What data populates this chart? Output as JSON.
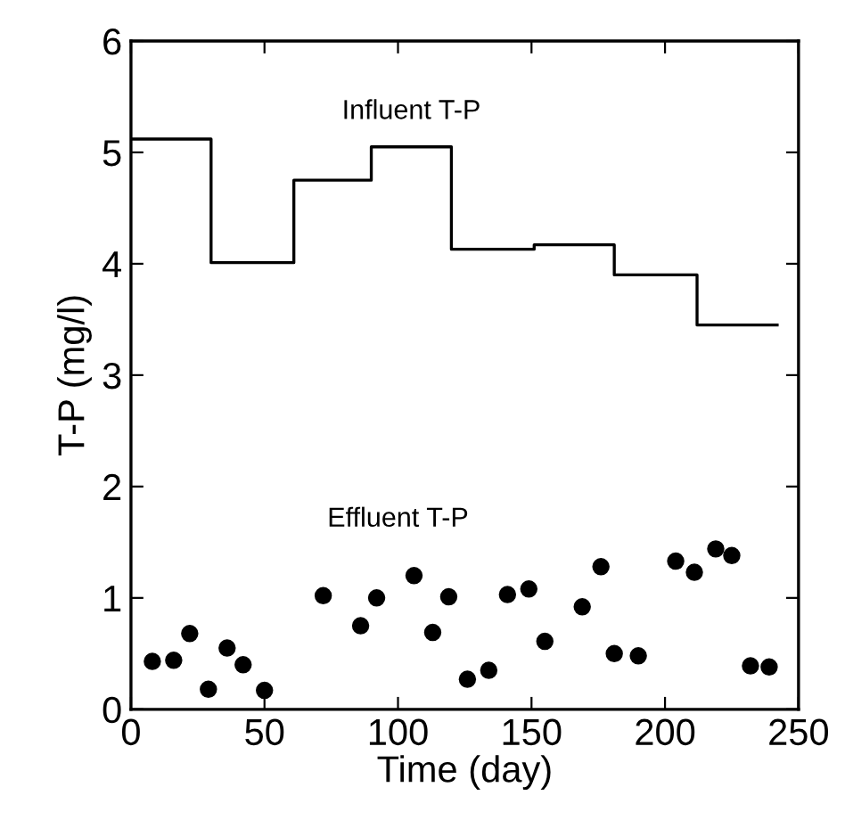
{
  "chart_data": {
    "type": "scatter",
    "xlabel": "Time (day)",
    "ylabel": "T-P (mg/l)",
    "xlim": [
      0,
      250
    ],
    "xticks": [
      0,
      50,
      100,
      150,
      200,
      250
    ],
    "ylim": [
      0,
      6
    ],
    "yticks": [
      0,
      1,
      2,
      3,
      4,
      5,
      6
    ],
    "grid": false,
    "legend": false,
    "series": [
      {
        "name": "Influent T-P",
        "type": "step",
        "color": "#000000",
        "marker": "none",
        "x": [
          0,
          30,
          61,
          90,
          120,
          151,
          181,
          212,
          242
        ],
        "values": [
          5.12,
          4.01,
          4.75,
          5.05,
          4.13,
          4.17,
          3.9,
          3.45,
          3.45
        ]
      },
      {
        "name": "Effluent T-P",
        "color": "#000000",
        "marker": "circle",
        "x": [
          8,
          16,
          22,
          29,
          36,
          42,
          50,
          72,
          86,
          92,
          106,
          113,
          119,
          126,
          134,
          141,
          149,
          155,
          169,
          176,
          181,
          190,
          204,
          211,
          219,
          225,
          232,
          239
        ],
        "values": [
          0.43,
          0.44,
          0.68,
          0.18,
          0.55,
          0.4,
          0.17,
          1.02,
          0.75,
          1.0,
          1.2,
          0.69,
          1.01,
          0.27,
          0.35,
          1.03,
          1.08,
          0.61,
          0.92,
          1.28,
          0.5,
          0.48,
          1.33,
          1.23,
          1.44,
          1.38,
          0.39,
          0.38
        ]
      }
    ]
  }
}
